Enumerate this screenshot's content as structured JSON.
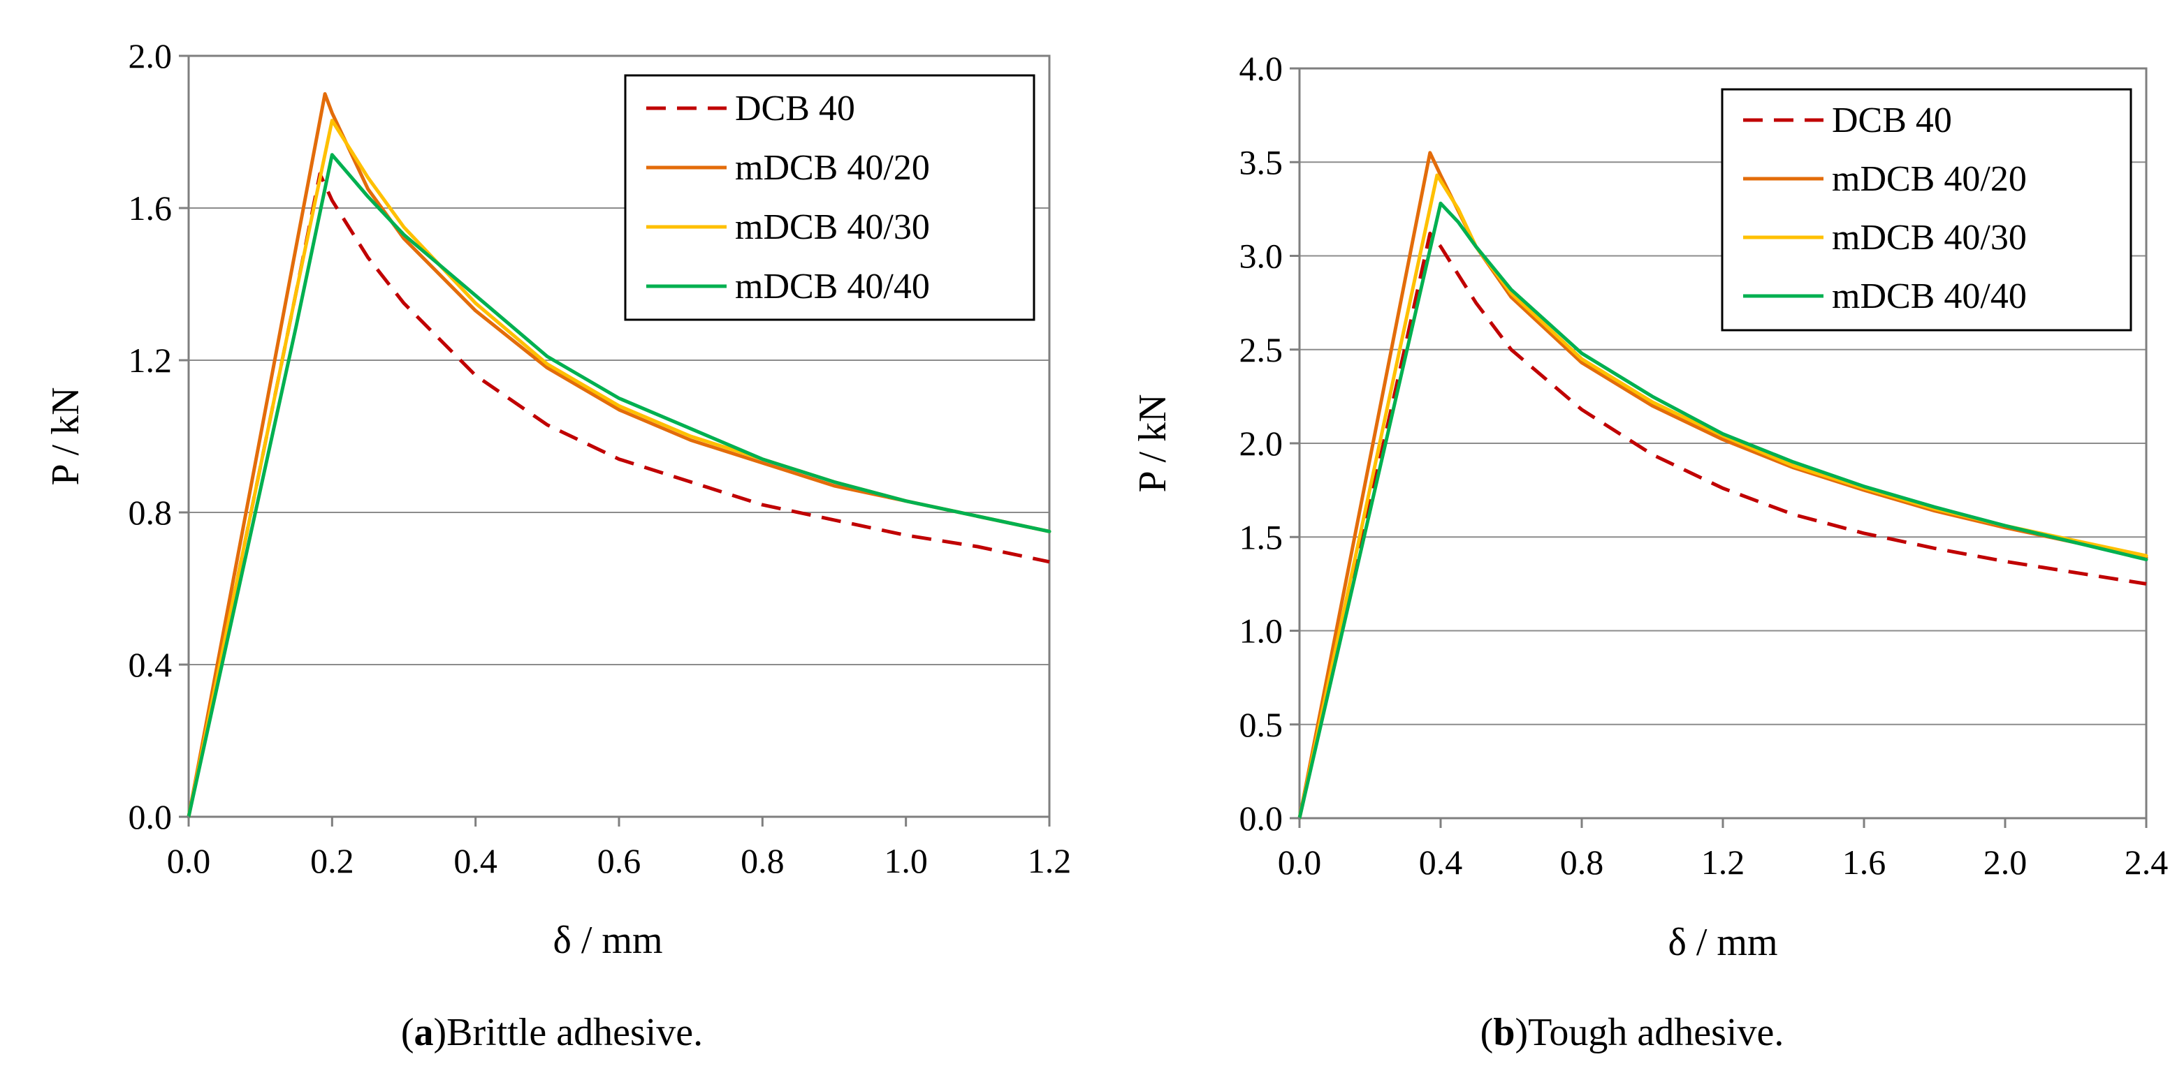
{
  "chart_data": [
    {
      "type": "line",
      "caption": {
        "letter": "a",
        "text": "Brittle adhesive."
      },
      "xlabel": "δ / mm",
      "ylabel": "P / kN",
      "xlim": [
        0,
        1.2
      ],
      "ylim": [
        0,
        2.0
      ],
      "xticks": [
        "0.0",
        "0.2",
        "0.4",
        "0.6",
        "0.8",
        "1.0",
        "1.2"
      ],
      "xtick_values": [
        0,
        0.2,
        0.4,
        0.6,
        0.8,
        1.0,
        1.2
      ],
      "yticks": [
        "0.0",
        "0.4",
        "0.8",
        "1.2",
        "1.6",
        "2.0"
      ],
      "ytick_values": [
        0,
        0.4,
        0.8,
        1.2,
        1.6,
        2.0
      ],
      "grid": "horizontal",
      "legend_position": "top-right",
      "series": [
        {
          "name": "DCB 40",
          "color": "#c00000",
          "dashed": true,
          "x": [
            0,
            0.05,
            0.1,
            0.15,
            0.183,
            0.2,
            0.25,
            0.3,
            0.4,
            0.5,
            0.6,
            0.7,
            0.8,
            0.9,
            1.0,
            1.1,
            1.2
          ],
          "y": [
            0,
            0.46,
            0.92,
            1.38,
            1.69,
            1.62,
            1.47,
            1.35,
            1.16,
            1.03,
            0.94,
            0.88,
            0.82,
            0.78,
            0.74,
            0.71,
            0.67
          ]
        },
        {
          "name": "mDCB 40/20",
          "color": "#e36c0a",
          "dashed": false,
          "x": [
            0,
            0.05,
            0.1,
            0.15,
            0.19,
            0.2,
            0.25,
            0.3,
            0.4,
            0.5,
            0.6,
            0.7,
            0.8,
            0.9,
            1.0,
            1.1,
            1.2
          ],
          "y": [
            0,
            0.5,
            1.0,
            1.5,
            1.9,
            1.85,
            1.65,
            1.52,
            1.33,
            1.18,
            1.07,
            0.99,
            0.93,
            0.87,
            0.83,
            0.79,
            0.75
          ]
        },
        {
          "name": "mDCB 40/30",
          "color": "#ffc000",
          "dashed": false,
          "x": [
            0,
            0.05,
            0.1,
            0.15,
            0.2,
            0.25,
            0.3,
            0.4,
            0.5,
            0.6,
            0.7,
            0.8,
            0.9,
            1.0,
            1.1,
            1.2
          ],
          "y": [
            0,
            0.46,
            0.92,
            1.38,
            1.83,
            1.68,
            1.55,
            1.35,
            1.19,
            1.08,
            1.0,
            0.94,
            0.88,
            0.83,
            0.79,
            0.75
          ]
        },
        {
          "name": "mDCB 40/40",
          "color": "#00b050",
          "dashed": false,
          "x": [
            0,
            0.05,
            0.1,
            0.15,
            0.2,
            0.25,
            0.3,
            0.4,
            0.5,
            0.6,
            0.7,
            0.8,
            0.9,
            1.0,
            1.1,
            1.2
          ],
          "y": [
            0,
            0.43,
            0.86,
            1.29,
            1.74,
            1.63,
            1.53,
            1.37,
            1.21,
            1.1,
            1.02,
            0.94,
            0.88,
            0.83,
            0.79,
            0.75
          ]
        }
      ]
    },
    {
      "type": "line",
      "caption": {
        "letter": "b",
        "text": "Tough adhesive."
      },
      "xlabel": "δ / mm",
      "ylabel": "P / kN",
      "xlim": [
        0,
        2.4
      ],
      "ylim": [
        0,
        4.0
      ],
      "xticks": [
        "0.0",
        "0.4",
        "0.8",
        "1.2",
        "1.6",
        "2.0",
        "2.4"
      ],
      "xtick_values": [
        0,
        0.4,
        0.8,
        1.2,
        1.6,
        2.0,
        2.4
      ],
      "yticks": [
        "0.0",
        "0.5",
        "1.0",
        "1.5",
        "2.0",
        "2.5",
        "3.0",
        "3.5",
        "4.0"
      ],
      "ytick_values": [
        0,
        0.5,
        1.0,
        1.5,
        2.0,
        2.5,
        3.0,
        3.5,
        4.0
      ],
      "grid": "horizontal",
      "legend_position": "top-right",
      "series": [
        {
          "name": "DCB 40",
          "color": "#c00000",
          "dashed": true,
          "x": [
            0,
            0.1,
            0.2,
            0.3,
            0.37,
            0.4,
            0.5,
            0.6,
            0.8,
            1.0,
            1.2,
            1.4,
            1.6,
            1.8,
            2.0,
            2.2,
            2.4
          ],
          "y": [
            0,
            0.84,
            1.68,
            2.52,
            3.12,
            3.05,
            2.75,
            2.5,
            2.18,
            1.94,
            1.76,
            1.62,
            1.52,
            1.44,
            1.37,
            1.31,
            1.25
          ]
        },
        {
          "name": "mDCB 40/20",
          "color": "#e36c0a",
          "dashed": false,
          "x": [
            0,
            0.1,
            0.2,
            0.3,
            0.37,
            0.4,
            0.5,
            0.6,
            0.8,
            1.0,
            1.2,
            1.4,
            1.6,
            1.8,
            2.0,
            2.2,
            2.4
          ],
          "y": [
            0,
            0.96,
            1.92,
            2.88,
            3.55,
            3.43,
            3.05,
            2.78,
            2.43,
            2.2,
            2.02,
            1.87,
            1.75,
            1.64,
            1.55,
            1.47,
            1.39
          ]
        },
        {
          "name": "mDCB 40/30",
          "color": "#ffc000",
          "dashed": false,
          "x": [
            0,
            0.1,
            0.2,
            0.3,
            0.39,
            0.45,
            0.5,
            0.6,
            0.8,
            1.0,
            1.2,
            1.4,
            1.6,
            1.8,
            2.0,
            2.2,
            2.4
          ],
          "y": [
            0,
            0.88,
            1.76,
            2.64,
            3.43,
            3.25,
            3.05,
            2.8,
            2.45,
            2.22,
            2.04,
            1.88,
            1.76,
            1.65,
            1.56,
            1.48,
            1.4
          ]
        },
        {
          "name": "mDCB 40/40",
          "color": "#00b050",
          "dashed": false,
          "x": [
            0,
            0.1,
            0.2,
            0.3,
            0.4,
            0.45,
            0.5,
            0.6,
            0.8,
            1.0,
            1.2,
            1.4,
            1.6,
            1.8,
            2.0,
            2.2,
            2.4
          ],
          "y": [
            0,
            0.82,
            1.64,
            2.46,
            3.28,
            3.18,
            3.05,
            2.82,
            2.48,
            2.25,
            2.05,
            1.9,
            1.77,
            1.66,
            1.56,
            1.47,
            1.38
          ]
        }
      ]
    }
  ]
}
